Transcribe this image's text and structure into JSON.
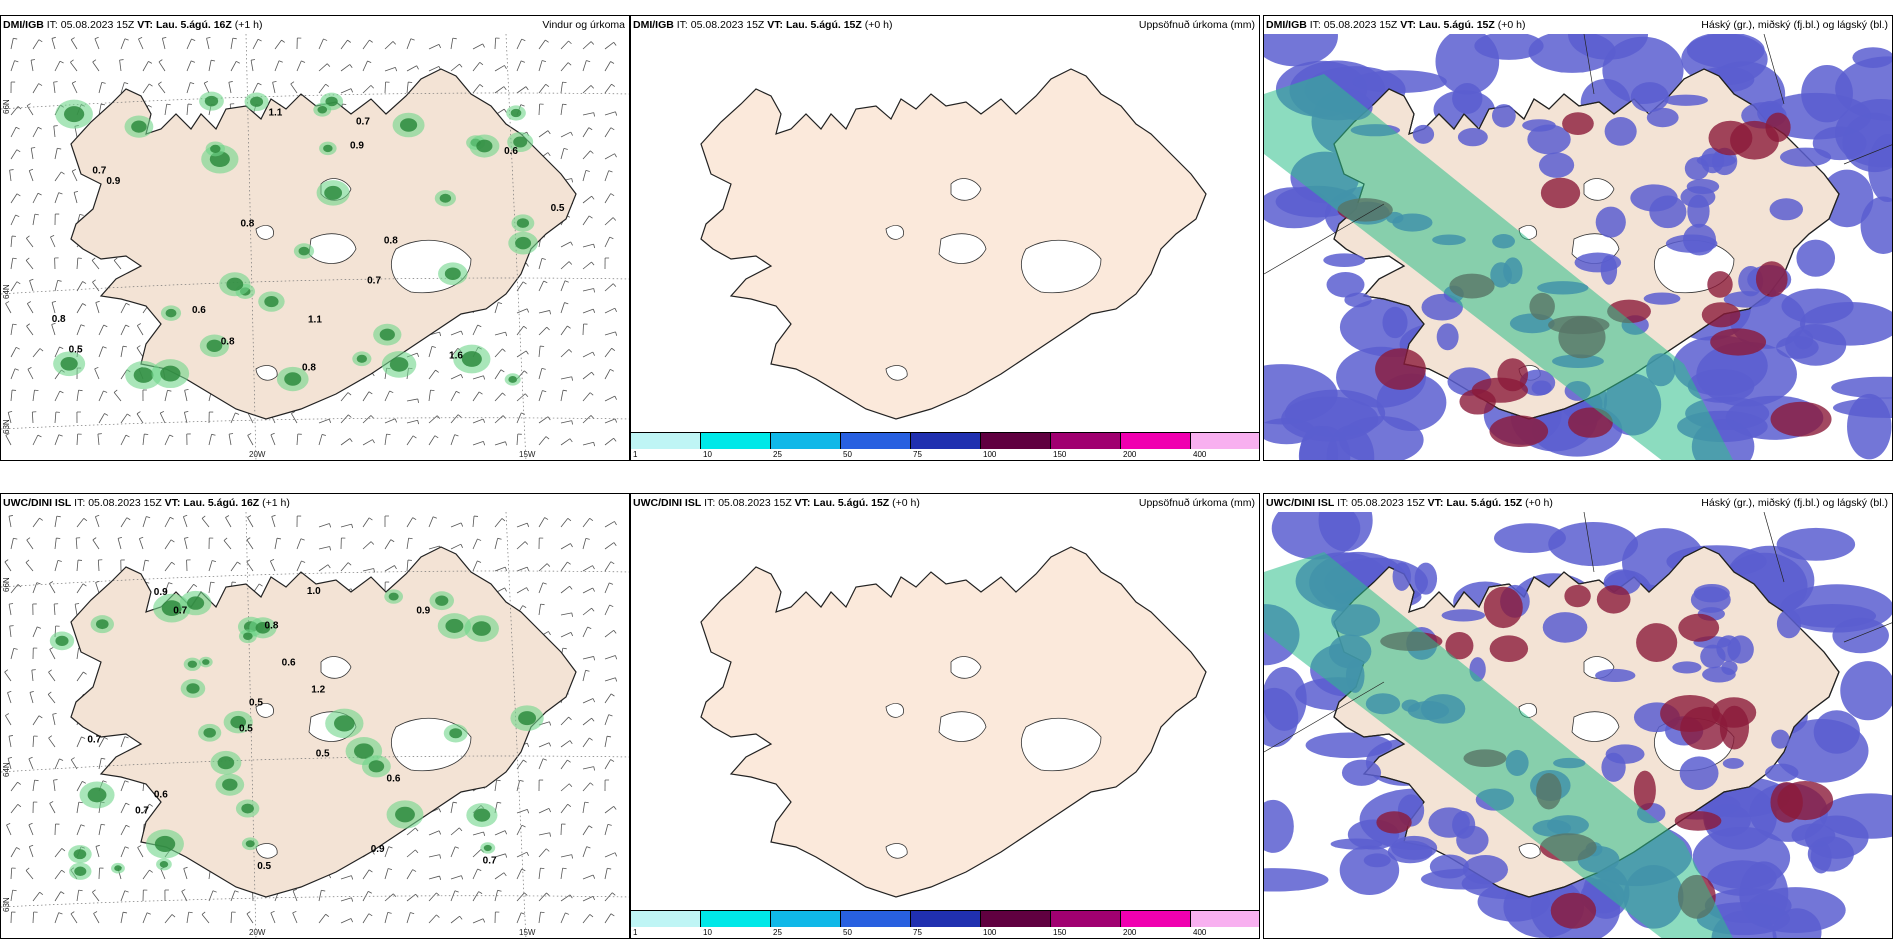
{
  "panels": [
    {
      "source": "DMI/IGB",
      "it_label": "IT:",
      "it_value": "05.08.2023 15Z",
      "vt_label": "VT:",
      "vt_value": "Lau. 5.ágú. 16Z",
      "offset": "(+1 h)",
      "title": "Vindur og úrkoma",
      "type": "wind"
    },
    {
      "source": "DMI/IGB",
      "it_label": "IT:",
      "it_value": "05.08.2023 15Z",
      "vt_label": "VT:",
      "vt_value": "Lau. 5.ágú. 15Z",
      "offset": "(+0 h)",
      "title": "Uppsöfnuð úrkoma (mm)",
      "type": "accum"
    },
    {
      "source": "DMI/IGB",
      "it_label": "IT:",
      "it_value": "05.08.2023 15Z",
      "vt_label": "VT:",
      "vt_value": "Lau. 5.ágú. 15Z",
      "offset": "(+0 h)",
      "title": "Háský (gr.), miðský (fj.bl.) og lágský (bl.)",
      "type": "cloud"
    },
    {
      "source": "UWC/DINI ISL",
      "it_label": "IT:",
      "it_value": "05.08.2023 15Z",
      "vt_label": "VT:",
      "vt_value": "Lau. 5.ágú. 16Z",
      "offset": "(+1 h)",
      "title": "",
      "type": "wind"
    },
    {
      "source": "UWC/DINI ISL",
      "it_label": "IT:",
      "it_value": "05.08.2023 15Z",
      "vt_label": "VT:",
      "vt_value": "Lau. 5.ágú. 15Z",
      "offset": "(+0 h)",
      "title": "Uppsöfnuð úrkoma (mm)",
      "type": "accum"
    },
    {
      "source": "UWC/DINI ISL",
      "it_label": "IT:",
      "it_value": "05.08.2023 15Z",
      "vt_label": "VT:",
      "vt_value": "Lau. 5.ágú. 15Z",
      "offset": "(+0 h)",
      "title": "Háský (gr.), miðský (fj.bl.) og lágský (bl.)",
      "type": "cloud"
    }
  ],
  "colorbar": {
    "colors": [
      "#bff5f5",
      "#00e8e8",
      "#10b8e8",
      "#2860e0",
      "#2030b0",
      "#600040",
      "#a00070",
      "#f000b0",
      "#f8b0f0"
    ],
    "labels": [
      "1",
      "10",
      "25",
      "50",
      "75",
      "100",
      "150",
      "200",
      "400"
    ]
  },
  "grid_labels": {
    "lon1": "20W",
    "lon2": "15W",
    "lat1": "66N",
    "lat2": "64N",
    "lat3": "63N"
  },
  "precip_labels_top": [
    "0.7",
    "0.8",
    "0.6",
    "0.8",
    "0.5",
    "0.5",
    "0.8",
    "0.9",
    "0.8",
    "0.7",
    "0.7",
    "1.1",
    "0.9",
    "1.1",
    "0.6",
    "1.6",
    "0.8"
  ],
  "precip_labels_bottom": [
    "0.7",
    "0.9",
    "0.5",
    "0.7",
    "0.7",
    "0.9",
    "0.5",
    "0.5",
    "0.6",
    "1.2",
    "0.8",
    "0.7",
    "0.9",
    "0.6",
    "1.0",
    "0.5",
    "0.6"
  ],
  "colors": {
    "land": "#f3e3d5",
    "wind_green": "#2e8b3e",
    "cloud_blue": "#5a5ed0",
    "cloud_red": "#8b1a3a",
    "cloud_green": "#2ebf8a"
  }
}
